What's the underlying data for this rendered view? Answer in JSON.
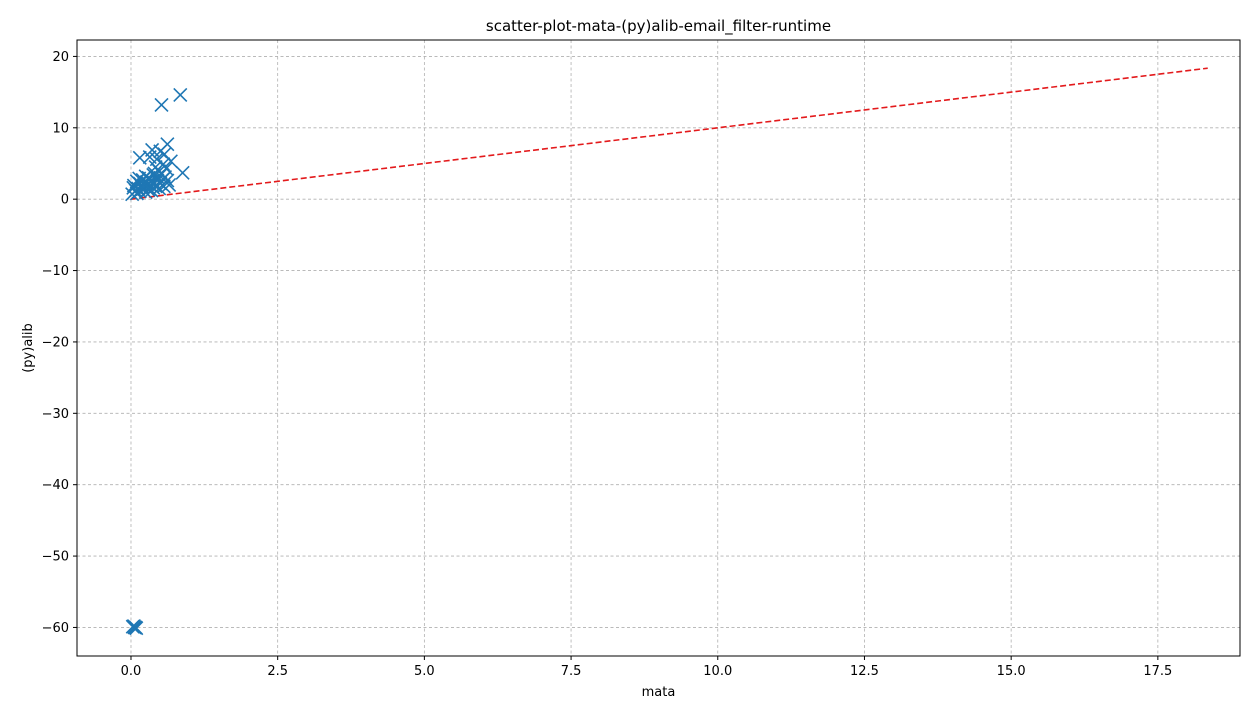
{
  "chart_data": {
    "type": "scatter",
    "title": "scatter-plot-mata-(py)alib-email_filter-runtime",
    "xlabel": "mata",
    "ylabel": "(py)alib",
    "xlim": [
      -0.92,
      18.9
    ],
    "ylim": [
      -64,
      22.3
    ],
    "xticks": [
      0.0,
      2.5,
      5.0,
      7.5,
      10.0,
      12.5,
      15.0,
      17.5
    ],
    "xtick_labels": [
      "0.0",
      "2.5",
      "5.0",
      "7.5",
      "10.0",
      "12.5",
      "15.0",
      "17.5"
    ],
    "yticks": [
      20,
      10,
      0,
      -10,
      -20,
      -30,
      -40,
      -50,
      -60
    ],
    "ytick_labels": [
      "20",
      "10",
      "0",
      "−10",
      "−20",
      "−30",
      "−40",
      "−50",
      "−60"
    ],
    "grid": true,
    "marker": "x",
    "marker_color": "#1f77b4",
    "line_color": "#e31a1c",
    "reference_line": {
      "x": [
        0,
        18.35
      ],
      "y": [
        0,
        18.35
      ]
    },
    "points": [
      [
        0.84,
        14.6
      ],
      [
        0.52,
        13.2
      ],
      [
        0.62,
        7.7
      ],
      [
        0.36,
        6.9
      ],
      [
        0.5,
        6.7
      ],
      [
        0.57,
        6.3
      ],
      [
        0.15,
        5.8
      ],
      [
        0.32,
        5.9
      ],
      [
        0.44,
        5.6
      ],
      [
        0.68,
        5.3
      ],
      [
        0.55,
        4.9
      ],
      [
        0.42,
        4.5
      ],
      [
        0.6,
        4.3
      ],
      [
        0.88,
        3.7
      ],
      [
        0.48,
        3.9
      ],
      [
        0.52,
        3.5
      ],
      [
        0.38,
        3.4
      ],
      [
        0.25,
        3.2
      ],
      [
        0.3,
        3.0
      ],
      [
        0.45,
        3.1
      ],
      [
        0.55,
        2.8
      ],
      [
        0.62,
        2.6
      ],
      [
        0.2,
        2.7
      ],
      [
        0.35,
        2.5
      ],
      [
        0.4,
        2.3
      ],
      [
        0.5,
        2.2
      ],
      [
        0.28,
        2.1
      ],
      [
        0.15,
        2.2
      ],
      [
        0.1,
        2.5
      ],
      [
        0.22,
        2.0
      ],
      [
        0.33,
        1.9
      ],
      [
        0.42,
        1.8
      ],
      [
        0.05,
        1.9
      ],
      [
        0.18,
        1.8
      ],
      [
        0.26,
        1.7
      ],
      [
        0.38,
        1.6
      ],
      [
        0.12,
        1.5
      ],
      [
        0.2,
        1.4
      ],
      [
        0.3,
        1.3
      ],
      [
        0.48,
        1.5
      ],
      [
        0.56,
        1.8
      ],
      [
        0.65,
        2.0
      ],
      [
        0.08,
        1.2
      ],
      [
        0.15,
        1.1
      ],
      [
        0.25,
        1.0
      ],
      [
        0.02,
        0.7
      ],
      [
        0.1,
        0.8
      ],
      [
        0.35,
        1.2
      ],
      [
        0.45,
        2.6
      ],
      [
        0.58,
        3.1
      ],
      [
        0.04,
        1.6
      ],
      [
        0.14,
        2.9
      ],
      [
        0.27,
        2.4
      ],
      [
        0.4,
        3.6
      ],
      [
        0.03,
        -59.9
      ],
      [
        0.06,
        -60.0
      ],
      [
        0.09,
        -60.1
      ],
      [
        0.05,
        -59.8
      ],
      [
        0.08,
        -60.0
      ]
    ]
  }
}
